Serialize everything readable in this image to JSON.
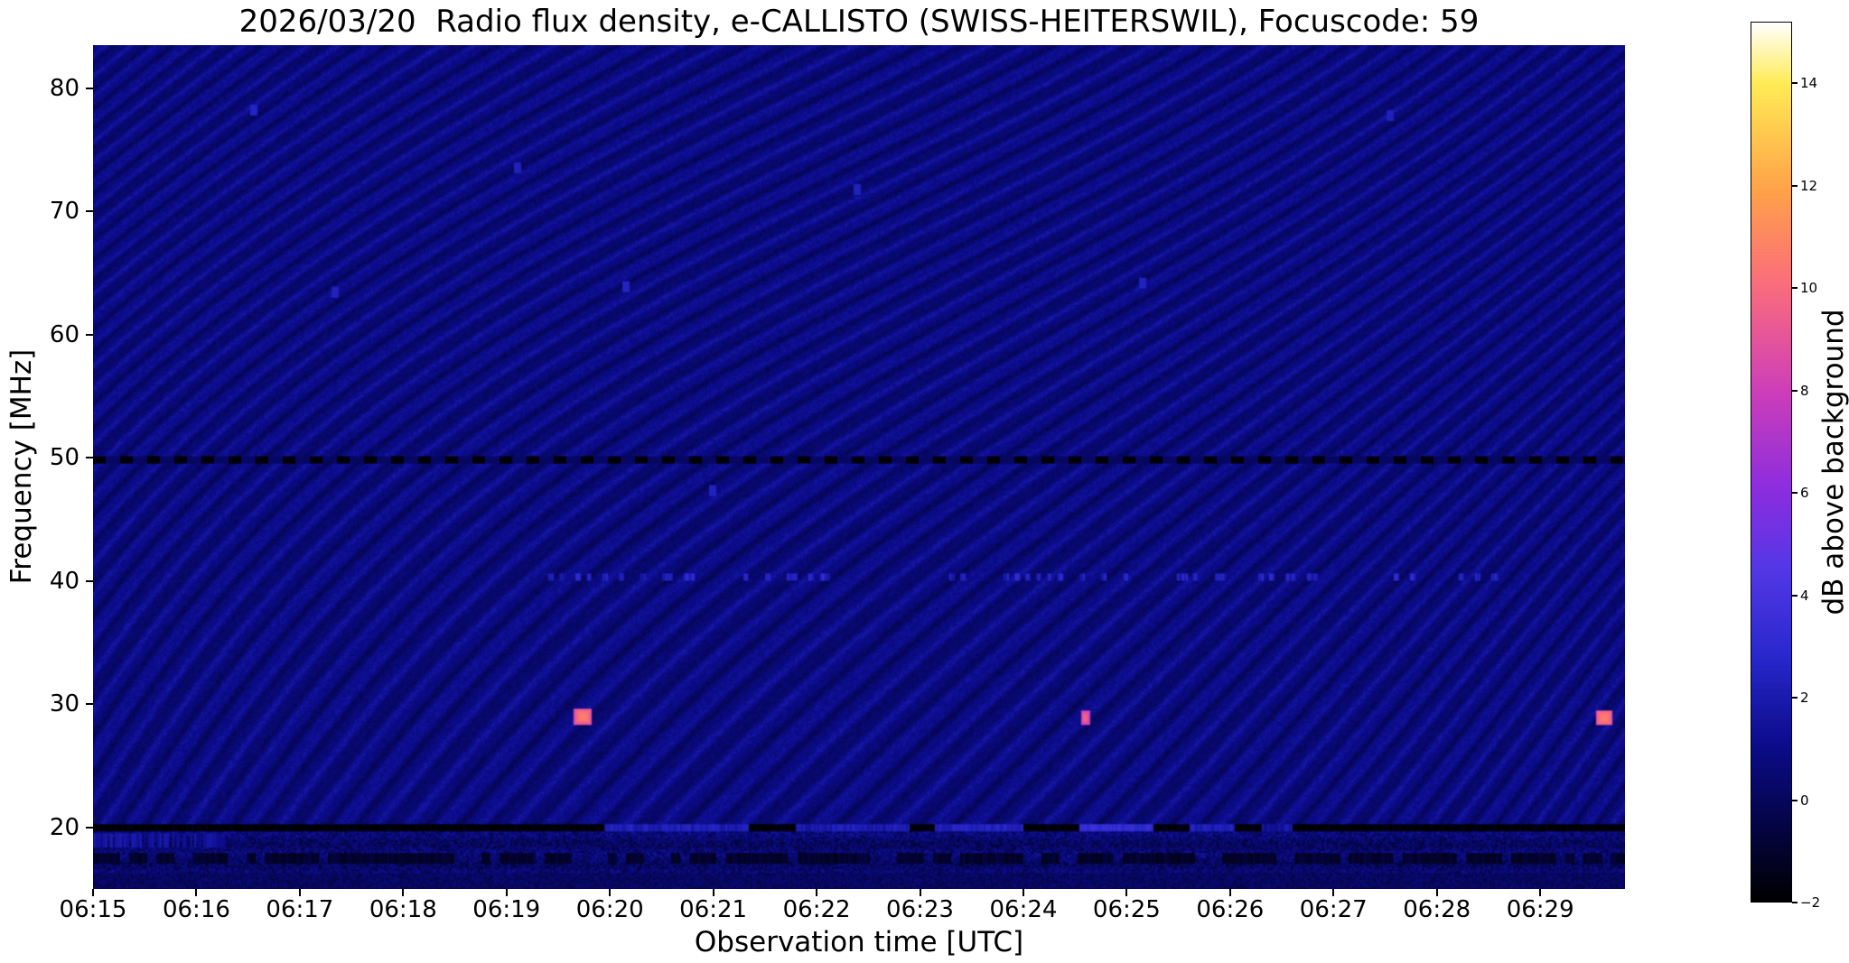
{
  "figure": {
    "title": "2026/03/20  Radio flux density, e-CALLISTO (SWISS-HEITERSWIL), Focuscode: 59",
    "xlabel": "Observation time [UTC]",
    "ylabel": "Frequency [MHz]",
    "colorbar_label": "dB above background"
  },
  "chart_data": {
    "type": "heatmap",
    "title": "2026/03/20  Radio flux density, e-CALLISTO (SWISS-HEITERSWIL), Focuscode: 59",
    "xlabel": "Observation time [UTC]",
    "ylabel": "Frequency [MHz]",
    "x_ticks": [
      "06:15",
      "06:16",
      "06:17",
      "06:18",
      "06:19",
      "06:20",
      "06:21",
      "06:22",
      "06:23",
      "06:24",
      "06:25",
      "06:26",
      "06:27",
      "06:28",
      "06:29"
    ],
    "x_range_minutes": [
      0,
      14.82
    ],
    "x_start_label": "06:15",
    "y_ticks": [
      20,
      30,
      40,
      50,
      60,
      70,
      80
    ],
    "ylim": [
      15.0,
      83.5
    ],
    "grid": false,
    "legend": "none",
    "colorbar": {
      "label": "dB above background",
      "ticks": [
        -2,
        0,
        2,
        4,
        6,
        8,
        10,
        12,
        14
      ],
      "vmin": -2,
      "vmax": 15.2,
      "colormap": "gnuplot2-like (black-blue-violet-magenta-salmon-orange-yellow-white)",
      "colormap_stops": [
        [
          0.0,
          0,
          0,
          0
        ],
        [
          0.1,
          5,
          5,
          80
        ],
        [
          0.18,
          12,
          12,
          140
        ],
        [
          0.28,
          40,
          40,
          205
        ],
        [
          0.38,
          85,
          55,
          230
        ],
        [
          0.47,
          140,
          45,
          222
        ],
        [
          0.58,
          205,
          62,
          185
        ],
        [
          0.7,
          250,
          108,
          125
        ],
        [
          0.81,
          255,
          162,
          72
        ],
        [
          0.93,
          255,
          235,
          85
        ],
        [
          1.0,
          255,
          255,
          255
        ]
      ]
    },
    "background": {
      "description": "dark blue noise floor ~0-1.5 dB with wavy diagonal interference fringes",
      "base_db": 0.75,
      "stripe_amp_db": 0.77,
      "noise_amp_db": 0.7
    },
    "features": {
      "interference_line_50mhz": {
        "freq_mhz": 49.8,
        "style": "dashed black line across full time range",
        "value_db": -1.9
      },
      "interference_line_20mhz": {
        "freq_mhz": 20.0,
        "style": "dark/black line with intermittent bright blue enhancements",
        "value_db": -1.8,
        "bright_segments": [
          {
            "start_min": 4.95,
            "end_min": 6.35,
            "value_db": 2.2
          },
          {
            "start_min": 6.8,
            "end_min": 7.9,
            "value_db": 2.0
          },
          {
            "start_min": 8.15,
            "end_min": 9.0,
            "value_db": 2.4
          },
          {
            "start_min": 9.55,
            "end_min": 10.25,
            "value_db": 3.2
          },
          {
            "start_min": 10.6,
            "end_min": 11.05,
            "value_db": 2.2
          },
          {
            "start_min": 11.3,
            "end_min": 11.6,
            "value_db": 1.6
          }
        ]
      },
      "low_band": {
        "freq_range_mhz": [
          15.0,
          19.7
        ],
        "description": "mottled dark/blue speckled band below 20 MHz"
      },
      "speckle_row_40mhz": {
        "freq_range": [
          40.0,
          40.55
        ],
        "t_range": [
          3.9,
          13.6
        ],
        "density": 0.28,
        "value_db": 2.2,
        "description": "scattered faint blue dashes near 40 MHz"
      },
      "dots": [
        {
          "t_min": 1.55,
          "freq_mhz": 78.2,
          "value_db": 2.6
        },
        {
          "t_min": 2.35,
          "freq_mhz": 63.4,
          "value_db": 2.4
        },
        {
          "t_min": 4.1,
          "freq_mhz": 73.5,
          "value_db": 2.3
        },
        {
          "t_min": 5.15,
          "freq_mhz": 63.9,
          "value_db": 2.5
        },
        {
          "t_min": 6.0,
          "freq_mhz": 47.3,
          "value_db": 2.4
        },
        {
          "t_min": 7.4,
          "freq_mhz": 71.8,
          "value_db": 2.3
        },
        {
          "t_min": 10.15,
          "freq_mhz": 64.2,
          "value_db": 2.4
        },
        {
          "t_min": 12.55,
          "freq_mhz": 77.8,
          "value_db": 2.3
        }
      ],
      "bursts": [
        {
          "time_utc": "06:19:44",
          "t_min": 4.74,
          "freq_mhz": 29.0,
          "width_min": 0.17,
          "height_mhz": 1.3,
          "peak_db": 10.8
        },
        {
          "time_utc": "06:24:36",
          "t_min": 9.6,
          "freq_mhz": 28.9,
          "width_min": 0.08,
          "height_mhz": 1.2,
          "peak_db": 9.8
        },
        {
          "time_utc": "06:29:37",
          "t_min": 14.62,
          "freq_mhz": 28.9,
          "width_min": 0.16,
          "height_mhz": 1.3,
          "peak_db": 10.8
        }
      ]
    }
  }
}
